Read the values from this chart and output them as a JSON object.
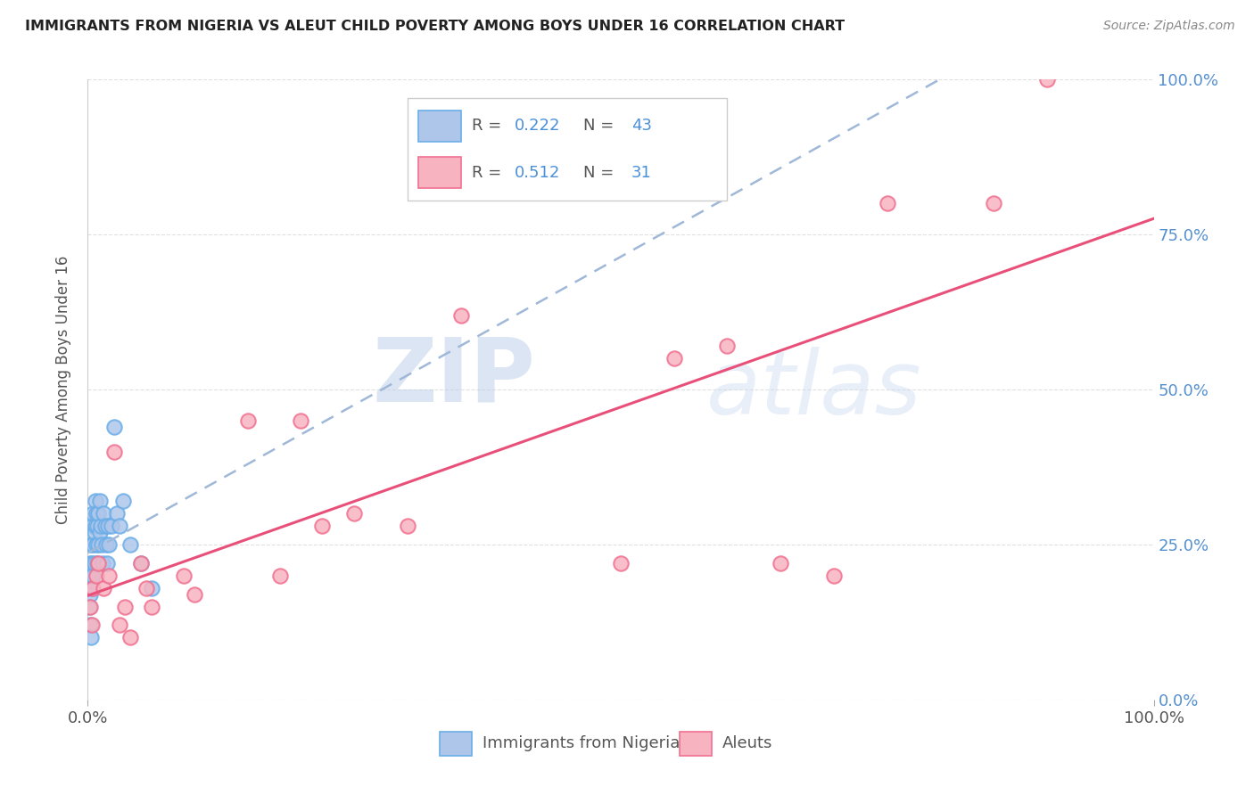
{
  "title": "IMMIGRANTS FROM NIGERIA VS ALEUT CHILD POVERTY AMONG BOYS UNDER 16 CORRELATION CHART",
  "source": "Source: ZipAtlas.com",
  "ylabel": "Child Poverty Among Boys Under 16",
  "legend_label1": "Immigrants from Nigeria",
  "legend_label2": "Aleuts",
  "r1": "0.222",
  "n1": "43",
  "r2": "0.512",
  "n2": "31",
  "color_blue_fill": "#aec6ea",
  "color_blue_edge": "#6aaee8",
  "color_pink_fill": "#f7b3c0",
  "color_pink_edge": "#f07090",
  "color_line_blue": "#8ab8e8",
  "color_line_pink": "#e8507a",
  "nigeria_x": [
    0.001,
    0.001,
    0.002,
    0.002,
    0.002,
    0.003,
    0.003,
    0.003,
    0.004,
    0.004,
    0.004,
    0.005,
    0.005,
    0.005,
    0.006,
    0.006,
    0.007,
    0.007,
    0.008,
    0.008,
    0.009,
    0.009,
    0.01,
    0.01,
    0.011,
    0.011,
    0.012,
    0.013,
    0.014,
    0.015,
    0.016,
    0.017,
    0.018,
    0.019,
    0.02,
    0.022,
    0.025,
    0.027,
    0.03,
    0.033,
    0.04,
    0.05,
    0.06
  ],
  "nigeria_y": [
    0.2,
    0.15,
    0.22,
    0.17,
    0.12,
    0.25,
    0.2,
    0.1,
    0.28,
    0.22,
    0.18,
    0.3,
    0.25,
    0.2,
    0.27,
    0.22,
    0.32,
    0.28,
    0.3,
    0.25,
    0.28,
    0.22,
    0.3,
    0.25,
    0.32,
    0.27,
    0.28,
    0.25,
    0.22,
    0.3,
    0.28,
    0.25,
    0.22,
    0.28,
    0.25,
    0.28,
    0.44,
    0.3,
    0.28,
    0.32,
    0.25,
    0.22,
    0.18
  ],
  "aleut_x": [
    0.002,
    0.004,
    0.005,
    0.008,
    0.01,
    0.015,
    0.02,
    0.025,
    0.03,
    0.035,
    0.04,
    0.05,
    0.055,
    0.06,
    0.09,
    0.1,
    0.15,
    0.18,
    0.2,
    0.22,
    0.25,
    0.3,
    0.35,
    0.5,
    0.55,
    0.6,
    0.65,
    0.7,
    0.75,
    0.85,
    0.9
  ],
  "aleut_y": [
    0.15,
    0.12,
    0.18,
    0.2,
    0.22,
    0.18,
    0.2,
    0.4,
    0.12,
    0.15,
    0.1,
    0.22,
    0.18,
    0.15,
    0.2,
    0.17,
    0.45,
    0.2,
    0.45,
    0.28,
    0.3,
    0.28,
    0.62,
    0.22,
    0.55,
    0.57,
    0.22,
    0.2,
    0.8,
    0.8,
    1.0
  ],
  "background_color": "#ffffff",
  "watermark_zip": "ZIP",
  "watermark_atlas": "atlas",
  "grid_color": "#e0e0e0",
  "yticks": [
    0.0,
    0.25,
    0.5,
    0.75,
    1.0
  ],
  "ytick_labels": [
    "0.0%",
    "25.0%",
    "50.0%",
    "75.0%",
    "100.0%"
  ],
  "xticks": [
    0.0,
    1.0
  ],
  "xtick_labels": [
    "0.0%",
    "100.0%"
  ]
}
